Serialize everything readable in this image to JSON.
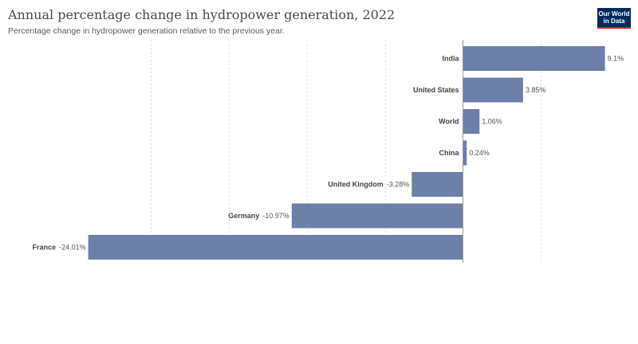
{
  "header": {
    "title": "Annual percentage change in hydropower generation, 2022",
    "subtitle": "Percentage change in hydropower generation relative to the previous year."
  },
  "logo": {
    "line1": "Our World",
    "line2": "in Data",
    "bg_color": "#002b5c",
    "accent_color": "#ce261e"
  },
  "chart_data": {
    "type": "bar",
    "orientation": "horizontal",
    "categories": [
      "India",
      "United States",
      "World",
      "China",
      "United Kingdom",
      "Germany",
      "France"
    ],
    "values": [
      9.1,
      3.85,
      1.06,
      0.24,
      -3.28,
      -10.97,
      -24.01
    ],
    "value_labels": [
      "9.1%",
      "3.85%",
      "1.06%",
      "0.24%",
      "-3.28%",
      "-10.97%",
      "-24.01%"
    ],
    "title": "Annual percentage change in hydropower generation, 2022",
    "subtitle": "Percentage change in hydropower generation relative to the previous year.",
    "xlim": [
      -24.01,
      9.1
    ],
    "grid": true,
    "bar_color": "#6b7fa8"
  }
}
